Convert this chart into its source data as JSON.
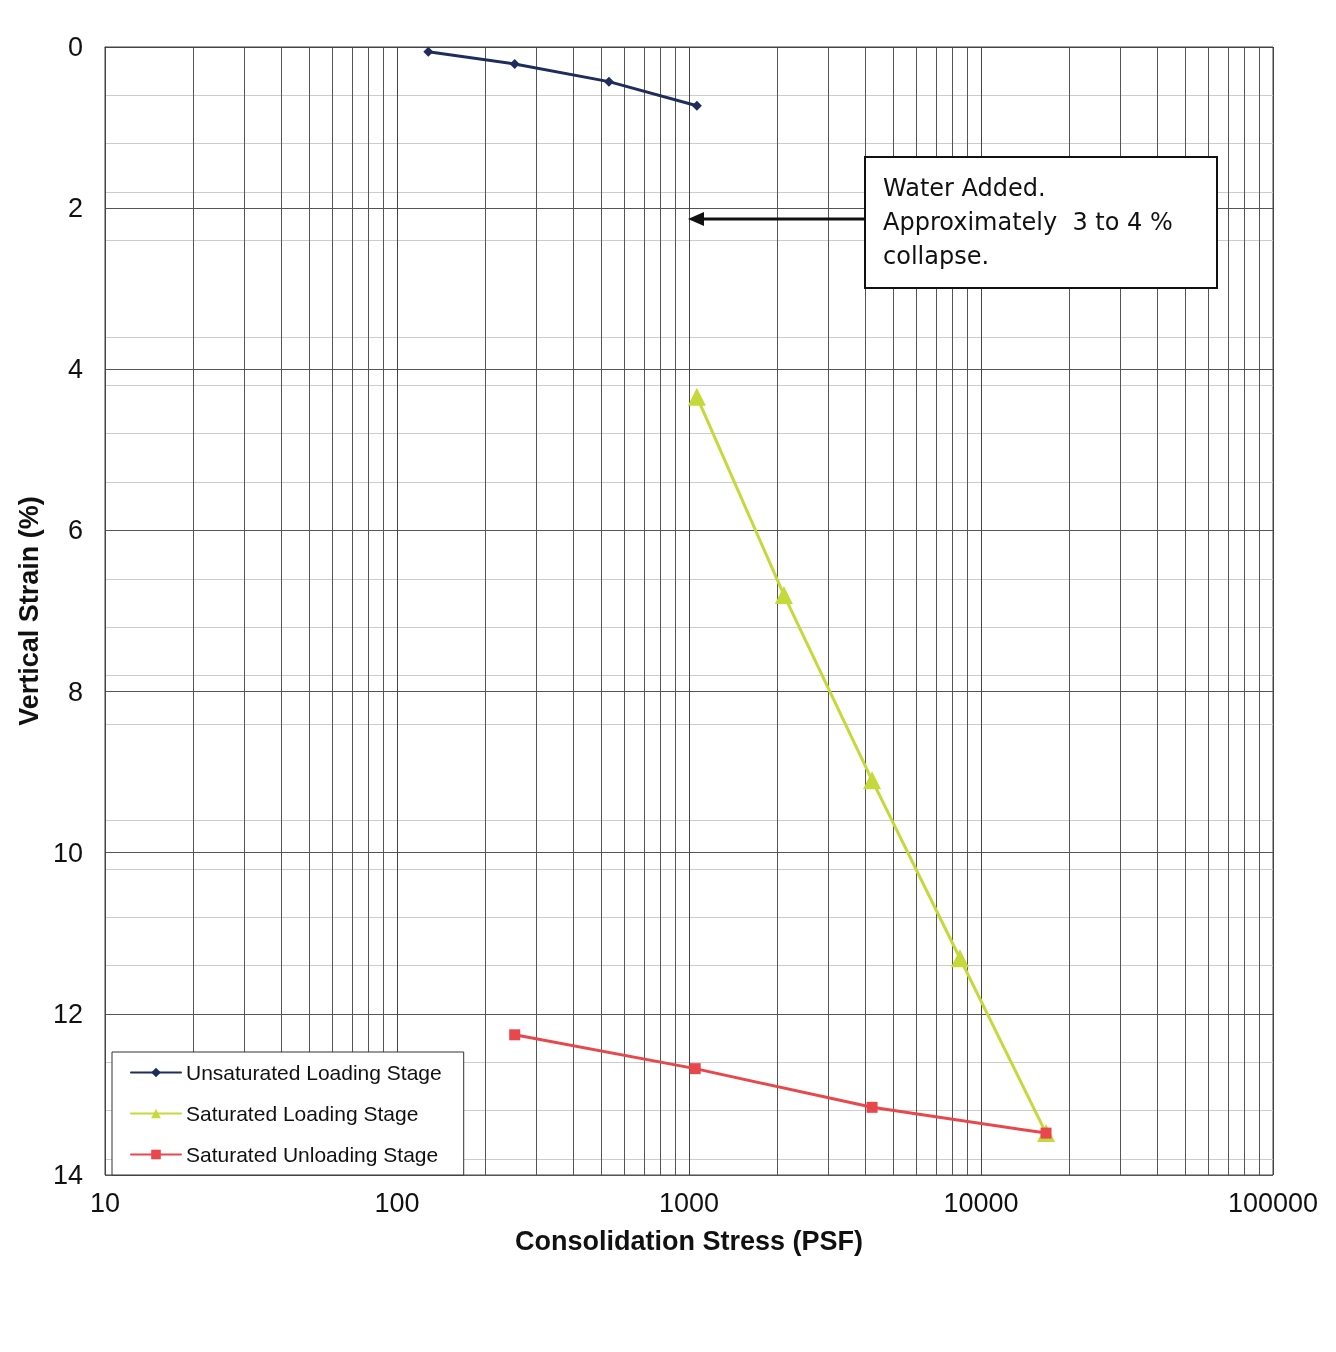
{
  "chart_data": {
    "type": "line",
    "xlabel": "Consolidation Stress (PSF)",
    "ylabel": "Vertical Strain (%)",
    "log": "x",
    "xlim": [
      10,
      100000
    ],
    "xticks": [
      10,
      100,
      1000,
      10000,
      100000
    ],
    "ylim": [
      14,
      0
    ],
    "yticks": [
      0,
      2,
      4,
      6,
      8,
      10,
      12,
      14
    ],
    "grid": true,
    "legend": "bottom left",
    "annotations": [
      "Water Added.\nApproximately  3 to 4 %\ncollapse."
    ],
    "series": [
      {
        "name": "Unsaturated Loading Stage",
        "color": "#1f2d5c",
        "marker": "diamond",
        "x": [
          128,
          253,
          532,
          1064
        ],
        "values": [
          0.06,
          0.21,
          0.43,
          0.73
        ]
      },
      {
        "name": "Saturated Loading Stage",
        "color": "#c5d93a",
        "marker": "triangle",
        "x": [
          1064,
          2113,
          4236,
          8470,
          16700
        ],
        "values": [
          4.34,
          6.8,
          9.1,
          11.31,
          13.48
        ]
      },
      {
        "name": "Saturated Unloading Stage",
        "color": "#e8474c",
        "marker": "square",
        "x": [
          253,
          1050,
          4236,
          16700
        ],
        "values": [
          12.26,
          12.68,
          13.16,
          13.48
        ]
      }
    ]
  }
}
